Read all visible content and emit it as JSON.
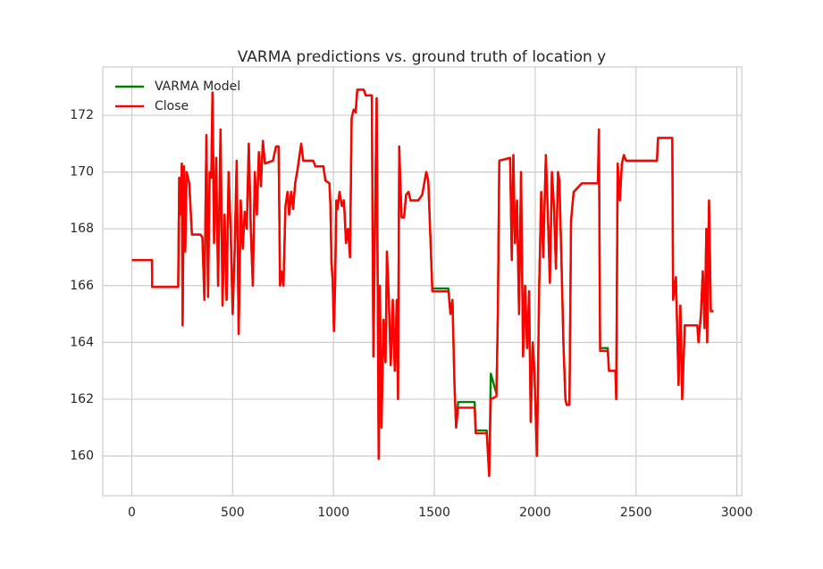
{
  "chart_data": {
    "type": "line",
    "title": "VARMA predictions vs. ground truth of location y",
    "x": [
      0,
      100,
      101,
      230,
      235,
      242,
      248,
      252,
      258,
      265,
      272,
      285,
      298,
      340,
      350,
      360,
      370,
      378,
      386,
      394,
      400,
      408,
      418,
      428,
      440,
      450,
      460,
      470,
      480,
      490,
      500,
      510,
      520,
      530,
      540,
      550,
      560,
      570,
      580,
      590,
      600,
      610,
      620,
      630,
      640,
      650,
      660,
      700,
      715,
      728,
      735,
      742,
      752,
      762,
      772,
      780,
      790,
      800,
      810,
      822,
      840,
      850,
      900,
      910,
      950,
      960,
      980,
      985,
      990,
      996,
      1002,
      1008,
      1014,
      1020,
      1030,
      1042,
      1052,
      1062,
      1072,
      1082,
      1090,
      1100,
      1110,
      1118,
      1150,
      1160,
      1190,
      1198,
      1206,
      1214,
      1224,
      1230,
      1238,
      1248,
      1258,
      1265,
      1274,
      1284,
      1294,
      1304,
      1314,
      1320,
      1326,
      1332,
      1338,
      1350,
      1360,
      1372,
      1382,
      1420,
      1440,
      1460,
      1470,
      1480,
      1490,
      1570,
      1580,
      1590,
      1600,
      1608,
      1618,
      1700,
      1705,
      1760,
      1772,
      1780,
      1808,
      1815,
      1822,
      1876,
      1884,
      1892,
      1900,
      1910,
      1920,
      1930,
      1940,
      1950,
      1960,
      1970,
      1978,
      1988,
      1996,
      2009,
      2020,
      2030,
      2040,
      2053,
      2063,
      2073,
      2083,
      2093,
      2103,
      2113,
      2120,
      2130,
      2140,
      2150,
      2156,
      2170,
      2178,
      2191,
      2231,
      2311,
      2316,
      2322,
      2360,
      2366,
      2398,
      2402,
      2409,
      2420,
      2430,
      2440,
      2450,
      2604,
      2609,
      2680,
      2684,
      2698,
      2711,
      2720,
      2729,
      2742,
      2804,
      2810,
      2822,
      2831,
      2840,
      2849,
      2853,
      2862,
      2871,
      2884
    ],
    "series": [
      {
        "name": "VARMA Model",
        "color": "#008000",
        "values": [
          166.9,
          166.9,
          165.95,
          165.95,
          169.8,
          168.5,
          170.3,
          164.6,
          170.2,
          167.2,
          170.0,
          169.6,
          167.8,
          167.8,
          167.7,
          165.5,
          171.3,
          165.6,
          170.0,
          169.8,
          172.8,
          167.5,
          170.5,
          166.0,
          171.5,
          165.3,
          168.5,
          165.5,
          170.0,
          168.0,
          165.0,
          167.2,
          170.4,
          164.3,
          169.0,
          167.3,
          168.6,
          168.0,
          171.0,
          168.0,
          166.0,
          170.0,
          168.5,
          170.7,
          169.5,
          171.1,
          170.3,
          170.4,
          170.9,
          170.9,
          166.0,
          166.5,
          166.0,
          168.8,
          169.3,
          168.5,
          169.3,
          168.7,
          169.6,
          170.1,
          171.0,
          170.4,
          170.4,
          170.2,
          170.2,
          169.7,
          169.6,
          168.8,
          166.8,
          166.2,
          164.4,
          166.0,
          169.0,
          168.7,
          169.3,
          168.8,
          169.0,
          167.5,
          168.0,
          167.0,
          171.9,
          172.2,
          172.1,
          172.9,
          172.9,
          172.7,
          172.7,
          163.5,
          168.3,
          172.6,
          159.9,
          166.0,
          161.0,
          164.8,
          163.3,
          167.2,
          165.6,
          163.2,
          165.5,
          163.0,
          165.5,
          162.0,
          170.9,
          169.5,
          168.4,
          168.4,
          169.2,
          169.3,
          169.0,
          169.0,
          169.2,
          170.0,
          169.7,
          167.8,
          165.9,
          165.9,
          165.0,
          165.5,
          162.5,
          161.0,
          161.9,
          161.9,
          160.9,
          160.9,
          159.3,
          162.9,
          162.2,
          165.0,
          170.4,
          170.5,
          166.9,
          170.6,
          167.5,
          169.0,
          165.0,
          170.0,
          163.5,
          166.0,
          163.8,
          165.8,
          161.2,
          164.0,
          163.0,
          160.0,
          166.0,
          169.3,
          167.0,
          170.6,
          168.5,
          166.1,
          170.0,
          168.8,
          166.6,
          170.0,
          169.7,
          167.0,
          164.0,
          162.0,
          161.8,
          161.8,
          168.3,
          169.3,
          169.6,
          169.6,
          171.5,
          163.8,
          163.8,
          163.0,
          163.0,
          162.0,
          170.3,
          169.0,
          170.3,
          170.6,
          170.4,
          170.4,
          171.2,
          171.2,
          165.5,
          166.3,
          162.5,
          165.3,
          162.0,
          164.6,
          164.6,
          164.0,
          165.0,
          166.5,
          164.5,
          168.0,
          164.0,
          169.0,
          165.1,
          165.1
        ]
      },
      {
        "name": "Close",
        "color": "#ff0000",
        "values": [
          166.9,
          166.9,
          165.95,
          165.95,
          169.8,
          168.5,
          170.3,
          164.6,
          170.2,
          167.2,
          170.0,
          169.6,
          167.8,
          167.8,
          167.7,
          165.5,
          171.3,
          165.6,
          170.0,
          169.8,
          172.8,
          167.5,
          170.5,
          166.0,
          171.5,
          165.3,
          168.5,
          165.5,
          170.0,
          168.0,
          165.0,
          167.2,
          170.4,
          164.3,
          169.0,
          167.3,
          168.6,
          168.0,
          171.0,
          168.0,
          166.0,
          170.0,
          168.5,
          170.7,
          169.5,
          171.1,
          170.3,
          170.4,
          170.9,
          170.9,
          166.0,
          166.5,
          166.0,
          168.8,
          169.3,
          168.5,
          169.3,
          168.7,
          169.6,
          170.1,
          171.0,
          170.4,
          170.4,
          170.2,
          170.2,
          169.7,
          169.6,
          168.8,
          166.8,
          166.2,
          164.4,
          166.0,
          169.0,
          168.7,
          169.3,
          168.8,
          169.0,
          167.5,
          168.0,
          167.0,
          171.9,
          172.2,
          172.1,
          172.9,
          172.9,
          172.7,
          172.7,
          163.5,
          168.3,
          172.6,
          159.9,
          166.0,
          161.0,
          164.8,
          163.3,
          167.2,
          165.6,
          163.2,
          165.5,
          163.0,
          165.5,
          162.0,
          170.9,
          169.5,
          168.4,
          168.4,
          169.2,
          169.3,
          169.0,
          169.0,
          169.2,
          170.0,
          169.7,
          167.8,
          165.8,
          165.8,
          165.0,
          165.5,
          162.5,
          161.0,
          161.7,
          161.7,
          160.8,
          160.8,
          159.3,
          162.0,
          162.1,
          165.0,
          170.4,
          170.5,
          166.9,
          170.6,
          167.5,
          169.0,
          165.0,
          170.0,
          163.5,
          166.0,
          163.8,
          165.8,
          161.2,
          164.0,
          163.0,
          160.0,
          166.0,
          169.3,
          167.0,
          170.6,
          168.5,
          166.1,
          170.0,
          168.8,
          166.6,
          170.0,
          169.7,
          167.0,
          164.0,
          162.0,
          161.8,
          161.8,
          168.3,
          169.3,
          169.6,
          169.6,
          171.5,
          163.7,
          163.7,
          163.0,
          163.0,
          162.0,
          170.3,
          169.0,
          170.3,
          170.6,
          170.4,
          170.4,
          171.2,
          171.2,
          165.5,
          166.3,
          162.5,
          165.3,
          162.0,
          164.6,
          164.6,
          164.0,
          165.0,
          166.5,
          164.5,
          168.0,
          164.0,
          169.0,
          165.1,
          165.1
        ]
      }
    ],
    "xlim": [
      -144,
      3024
    ],
    "ylim": [
      158.6,
      173.7
    ],
    "xticks": [
      0,
      500,
      1000,
      1500,
      2000,
      2500,
      3000
    ],
    "yticks": [
      160,
      162,
      164,
      166,
      168,
      170,
      172
    ],
    "grid": true,
    "legend": "upper-left"
  }
}
